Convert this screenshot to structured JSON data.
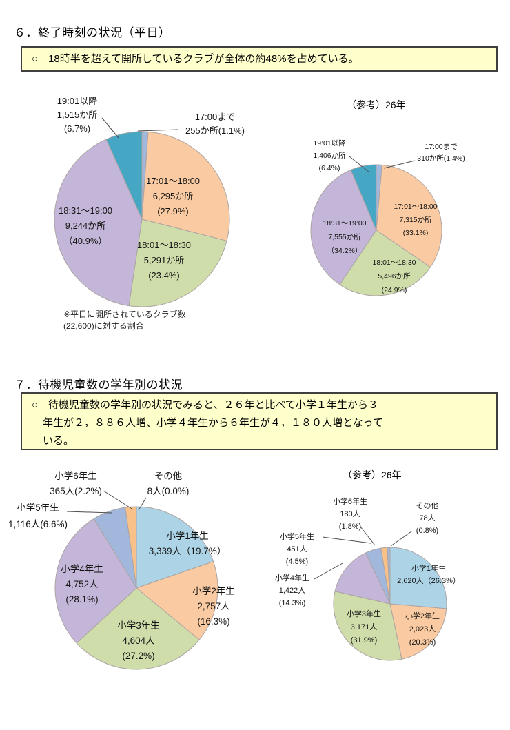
{
  "sections": [
    {
      "heading": "６．終了時刻の状況（平日）",
      "callout_lines": [
        "○　18時半を超えて開所しているクラブが全体の約48%を占めている。"
      ],
      "note_lines": [
        "※平日に開所されているクラブ数",
        "(22,600)に対する割合"
      ]
    },
    {
      "heading": "７．待機児童数の学年別の状況",
      "callout_lines": [
        "○　待機児童数の学年別の状況でみると、２６年と比べて小学１年生から３",
        "年生が２，８８６人増、小学４年生から６年生が４，１８０人増となって",
        "いる。"
      ]
    }
  ],
  "chart_data": [
    {
      "type": "pie",
      "title": "",
      "unit": "か所",
      "total": 22600,
      "slices": [
        {
          "name": "17:00まで",
          "value": 255,
          "pct": 1.1,
          "color": "#A1B8DC",
          "display": [
            "17:00まで",
            "255か所(1.1%)"
          ]
        },
        {
          "name": "17:01～18:00",
          "value": 6295,
          "pct": 27.9,
          "color": "#FACBA2",
          "display": [
            "17:01～18:00",
            "6,295か所",
            "(27.9%)"
          ]
        },
        {
          "name": "18:01～18:30",
          "value": 5291,
          "pct": 23.4,
          "color": "#CEDDAA",
          "display": [
            "18:01～18:30",
            "5,291か所",
            "(23.4%)"
          ]
        },
        {
          "name": "18:31～19:00",
          "value": 9244,
          "pct": 40.9,
          "color": "#C4B6D8",
          "display": [
            "18:31～19:00",
            "9,244か所",
            "（40.9%）"
          ]
        },
        {
          "name": "19:01以降",
          "value": 1515,
          "pct": 6.7,
          "color": "#46A7C4",
          "display": [
            "19:01以降",
            "1,515か所",
            "(6.7%)"
          ]
        }
      ]
    },
    {
      "type": "pie",
      "title": "（参考）26年",
      "unit": "か所",
      "slices": [
        {
          "name": "17:00まで",
          "value": 310,
          "pct": 1.4,
          "color": "#A1B8DC",
          "display": [
            "17:00まで",
            "310か所(1.4%)"
          ]
        },
        {
          "name": "17:01～18:00",
          "value": 7315,
          "pct": 33.1,
          "color": "#FACBA2",
          "display": [
            "17:01～18:00",
            "7,315か所",
            "(33.1%)"
          ]
        },
        {
          "name": "18:01～18:30",
          "value": 5496,
          "pct": 24.9,
          "color": "#CEDDAA",
          "display": [
            "18:01～18:30",
            "5,496か所",
            "(24.9%)"
          ]
        },
        {
          "name": "18:31～19:00",
          "value": 7555,
          "pct": 34.2,
          "color": "#C4B6D8",
          "display": [
            "18:31～19:00",
            "7,555か所",
            "（34.2%）"
          ]
        },
        {
          "name": "19:01以降",
          "value": 1406,
          "pct": 6.4,
          "color": "#46A7C4",
          "display": [
            "19:01以降",
            "1,406か所",
            "(6.4%)"
          ]
        }
      ]
    },
    {
      "type": "pie",
      "title": "",
      "unit": "人",
      "slices": [
        {
          "name": "小学1年生",
          "value": 3339,
          "pct": 19.7,
          "color": "#ADD4E6",
          "display": [
            "小学1年生",
            "3,339人（19.7%）"
          ]
        },
        {
          "name": "小学2年生",
          "value": 2757,
          "pct": 16.3,
          "color": "#FACBA2",
          "display": [
            "小学2年生",
            "2,757人",
            "(16.3%)"
          ]
        },
        {
          "name": "小学3年生",
          "value": 4604,
          "pct": 27.2,
          "color": "#CEDDAA",
          "display": [
            "小学3年生",
            "4,604人",
            "(27.2%)"
          ]
        },
        {
          "name": "小学4年生",
          "value": 4752,
          "pct": 28.1,
          "color": "#C4B6D8",
          "display": [
            "小学4年生",
            "4,752人",
            "(28.1%)"
          ]
        },
        {
          "name": "小学5年生",
          "value": 1116,
          "pct": 6.6,
          "color": "#A1B8DC",
          "display": [
            "小学5年生",
            "1,116人(6.6%)"
          ]
        },
        {
          "name": "小学6年生",
          "value": 365,
          "pct": 2.2,
          "color": "#F8C189",
          "display": [
            "小学6年生",
            "365人(2.2%)"
          ]
        },
        {
          "name": "その他",
          "value": 8,
          "pct": 0.0,
          "color": "#A1B8DC",
          "display": [
            "その他",
            "8人(0.0%)"
          ]
        }
      ]
    },
    {
      "type": "pie",
      "title": "（参考）26年",
      "unit": "人",
      "slices": [
        {
          "name": "小学1年生",
          "value": 2620,
          "pct": 26.3,
          "color": "#ADD4E6",
          "display": [
            "小学1年生",
            "2,620人（26.3%）"
          ]
        },
        {
          "name": "小学2年生",
          "value": 2023,
          "pct": 20.3,
          "color": "#FACBA2",
          "display": [
            "小学2年生",
            "2,023人",
            "(20.3%)"
          ]
        },
        {
          "name": "小学3年生",
          "value": 3171,
          "pct": 31.9,
          "color": "#CEDDAA",
          "display": [
            "小学3年生",
            "3,171人",
            "(31.9%)"
          ]
        },
        {
          "name": "小学4年生",
          "value": 1422,
          "pct": 14.3,
          "color": "#C4B6D8",
          "display": [
            "小学4年生",
            "1,422人",
            "(14.3%)"
          ]
        },
        {
          "name": "小学5年生",
          "value": 451,
          "pct": 4.5,
          "color": "#A1B8DC",
          "display": [
            "小学5年生",
            "451人",
            "(4.5%)"
          ]
        },
        {
          "name": "小学6年生",
          "value": 180,
          "pct": 1.8,
          "color": "#F8C189",
          "display": [
            "小学6年生",
            "180人",
            "(1.8%)"
          ]
        },
        {
          "name": "その他",
          "value": 78,
          "pct": 0.8,
          "color": "#A1B8DC",
          "display": [
            "その他",
            "78人",
            "(0.8%)"
          ]
        }
      ]
    }
  ]
}
